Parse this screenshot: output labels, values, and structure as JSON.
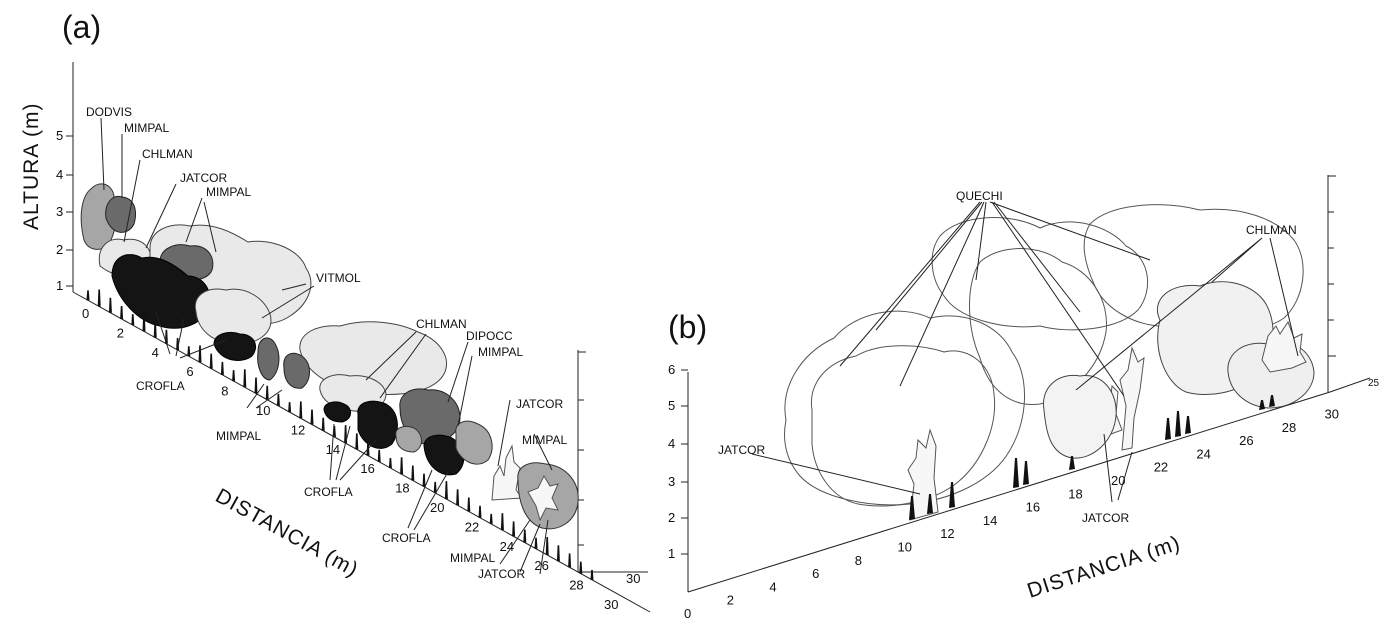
{
  "panel_a": {
    "label": "(a)",
    "y_axis_label": "ALTURA (m)",
    "x_axis_label": "DISTANCIA (m)",
    "y_ticks": [
      "1",
      "2",
      "3",
      "4",
      "5"
    ],
    "x_ticks": [
      "0",
      "2",
      "4",
      "6",
      "8",
      "10",
      "12",
      "14",
      "16",
      "18",
      "20",
      "22",
      "24",
      "26",
      "28",
      "30"
    ],
    "back_tick": "30",
    "species_labels": [
      "DODVIS",
      "MIMPAL",
      "CHLMAN",
      "JATCOR",
      "MIMPAL",
      "VITMOL",
      "CROFLA",
      "MIMPAL",
      "CHLMAN",
      "DIPOCC",
      "MIMPAL",
      "JATCOR",
      "MIMPAL",
      "CROFLA",
      "CROFLA",
      "MIMPAL",
      "JATCOR"
    ]
  },
  "panel_b": {
    "label": "(b)",
    "x_axis_label": "DISTANCIA (m)",
    "y_ticks": [
      "1",
      "2",
      "3",
      "4",
      "5",
      "6"
    ],
    "x_ticks": [
      "0",
      "2",
      "4",
      "6",
      "8",
      "10",
      "12",
      "14",
      "16",
      "18",
      "20",
      "22",
      "24",
      "26",
      "28",
      "30"
    ],
    "depth_tick": "25",
    "species_labels": [
      "QUECHI",
      "CHLMAN",
      "JATCOR",
      "JATCOR"
    ]
  }
}
